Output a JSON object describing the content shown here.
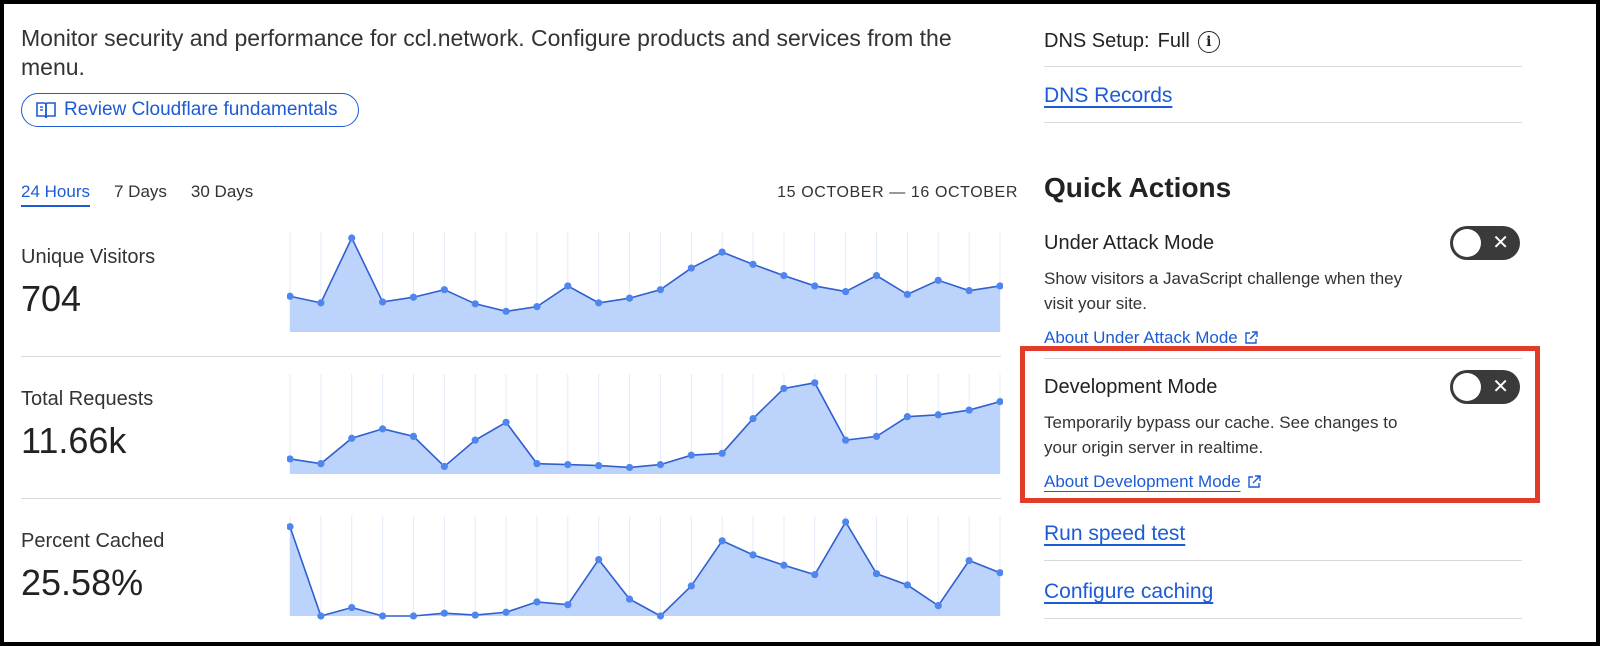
{
  "intro": {
    "text": "Monitor security and performance for ccl.network. Configure products and services from the menu.",
    "review_button": "Review Cloudflare fundamentals"
  },
  "tabs": [
    {
      "label": "24 Hours",
      "active": true
    },
    {
      "label": "7 Days",
      "active": false
    },
    {
      "label": "30 Days",
      "active": false
    }
  ],
  "date_range": "15 OCTOBER — 16 OCTOBER",
  "metrics": [
    {
      "label": "Unique Visitors",
      "value": "704"
    },
    {
      "label": "Total Requests",
      "value": "11.66k"
    },
    {
      "label": "Percent Cached",
      "value": "25.58%"
    }
  ],
  "chart_data": [
    {
      "type": "area",
      "series": [
        {
          "values": [
            38,
            31,
            100,
            32,
            37,
            45,
            30,
            22,
            27,
            49,
            31,
            36,
            45,
            68,
            85,
            72,
            60,
            49,
            43,
            60,
            40,
            55,
            44,
            49
          ]
        }
      ],
      "ylim": [
        0,
        100
      ]
    },
    {
      "type": "area",
      "series": [
        {
          "values": [
            16,
            11,
            38,
            48,
            40,
            8,
            36,
            55,
            11,
            10,
            9,
            7,
            10,
            20,
            22,
            59,
            91,
            97,
            36,
            40,
            61,
            63,
            68,
            77
          ]
        }
      ],
      "ylim": [
        0,
        100
      ]
    },
    {
      "type": "area",
      "series": [
        {
          "values": [
            95,
            0,
            9,
            0,
            -1,
            3,
            1,
            4,
            15,
            12,
            60,
            18,
            0,
            32,
            80,
            65,
            54,
            44,
            100,
            45,
            33,
            11,
            59,
            46
          ]
        }
      ],
      "ylim": [
        0,
        100
      ]
    }
  ],
  "right": {
    "dns_setup_label": "DNS Setup:",
    "dns_setup_value": "Full",
    "dns_records": "DNS Records",
    "quick_actions_title": "Quick Actions",
    "actions": [
      {
        "name": "Under Attack Mode",
        "desc": "Show visitors a JavaScript challenge when they visit your site.",
        "link": "About Under Attack Mode",
        "enabled": false
      },
      {
        "name": "Development Mode",
        "desc": "Temporarily bypass our cache. See changes to your origin server in realtime.",
        "link": "About Development Mode",
        "enabled": false
      }
    ],
    "run_speed_test": "Run speed test",
    "configure_caching": "Configure caching"
  },
  "colors": {
    "accent": "#1d5bd6",
    "chart_line": "#2f5fd0",
    "chart_point": "#4f86ee",
    "chart_fill": "#bcd3fb",
    "highlight": "#e23b2a"
  }
}
